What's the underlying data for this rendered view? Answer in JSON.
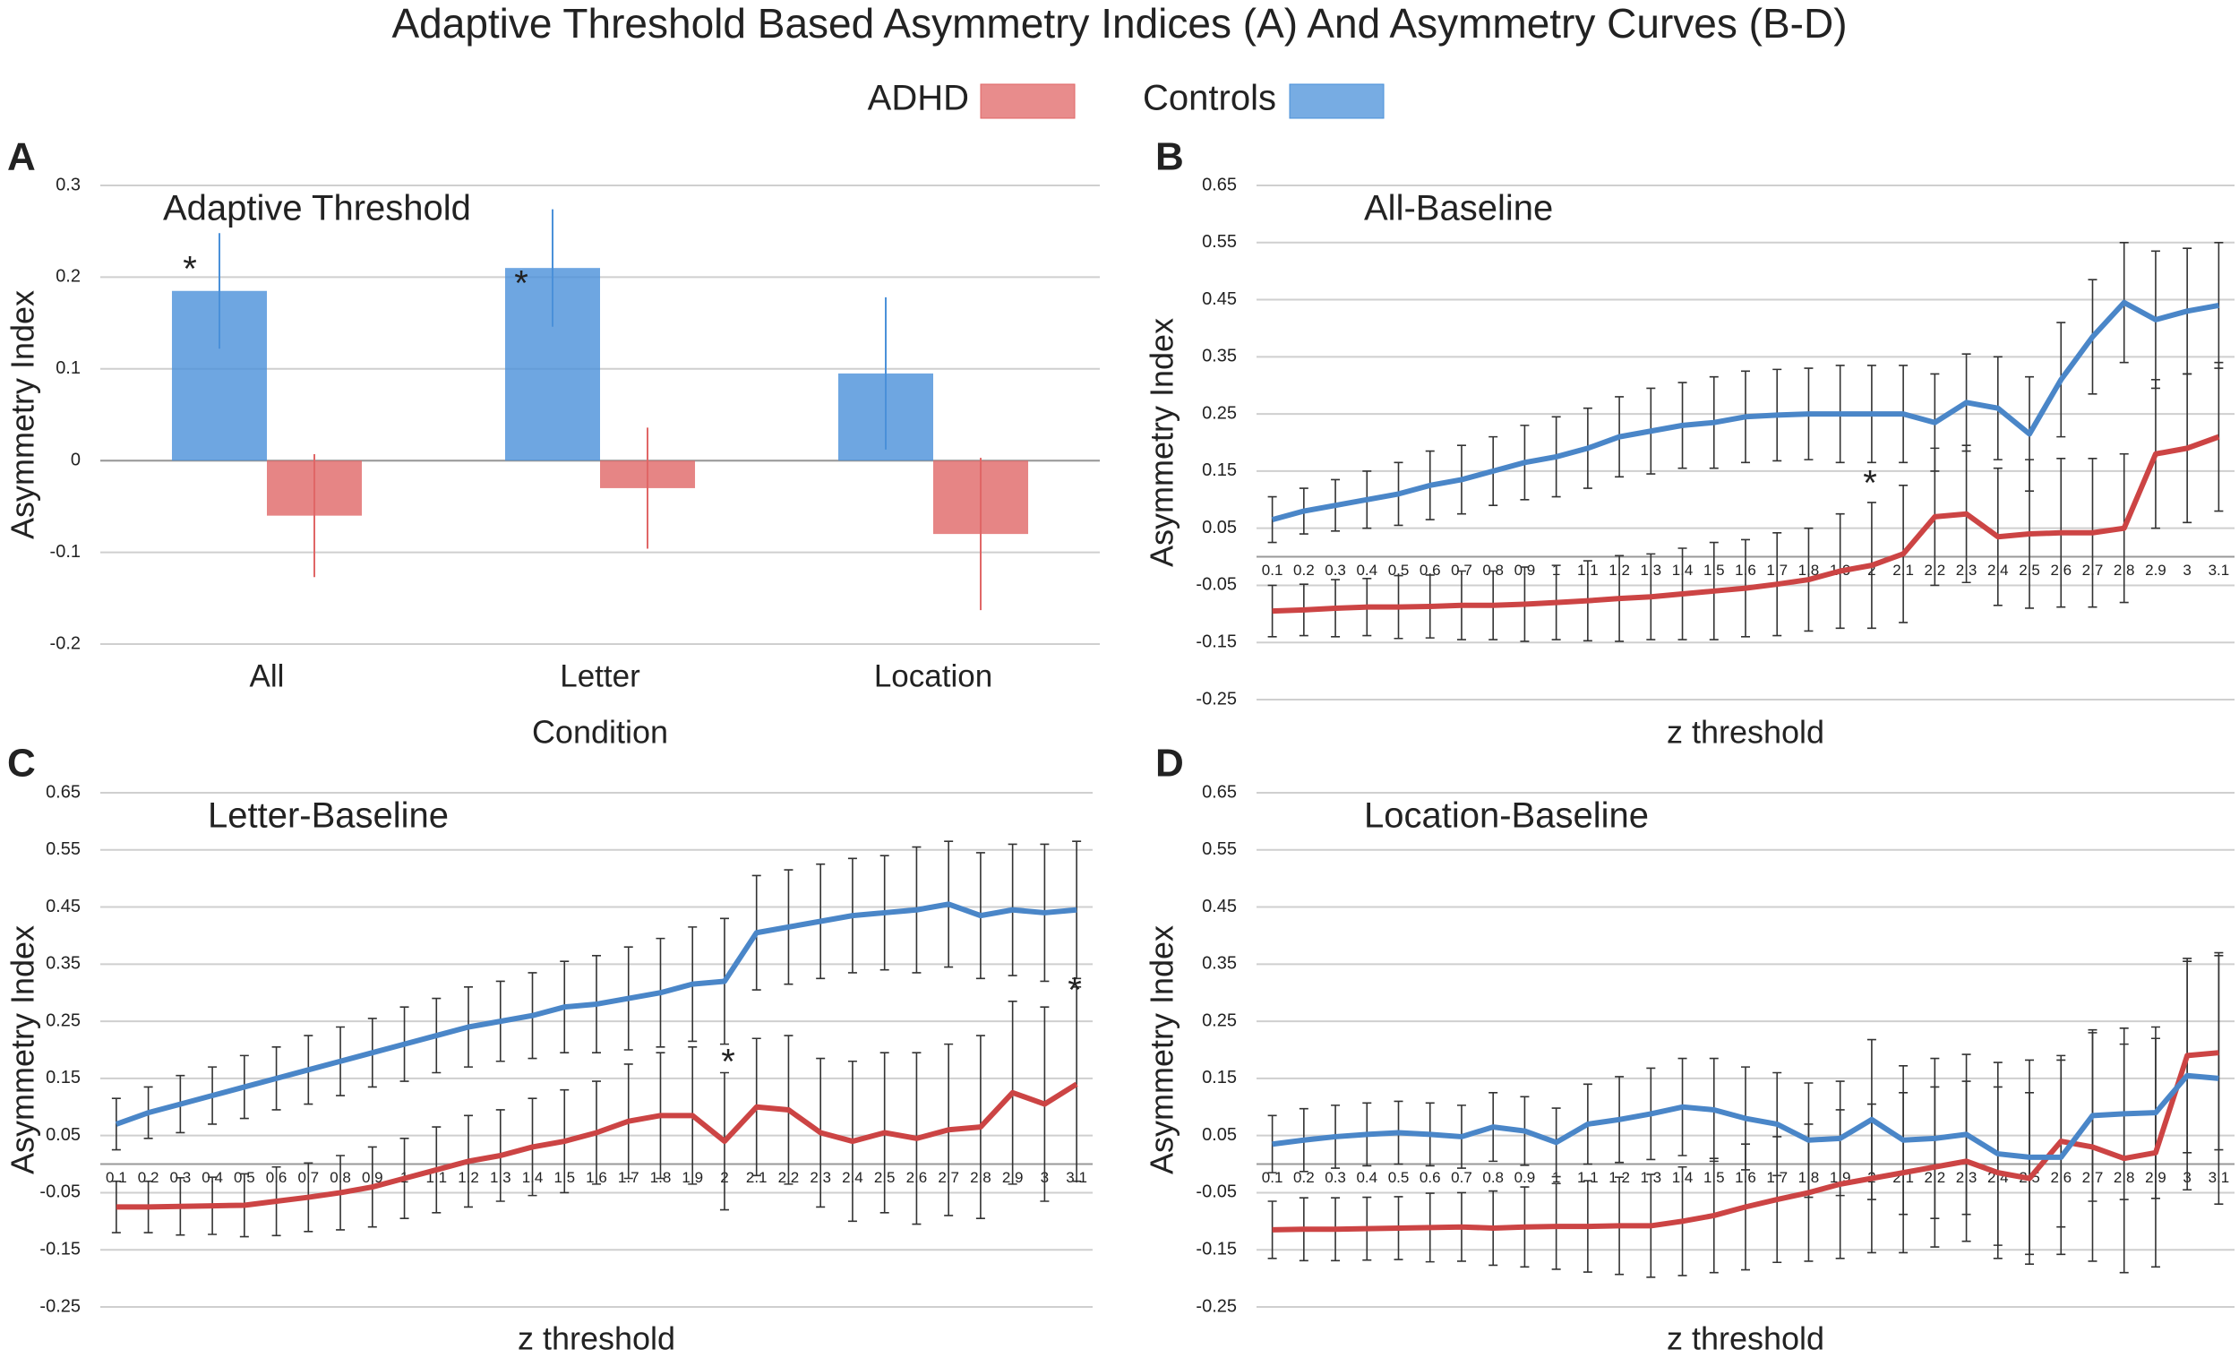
{
  "title": "Adaptive Threshold Based Asymmetry Indices (A) And Asymmetry Curves (B-D)",
  "chart_data": [
    {
      "type": "bar",
      "label": "A",
      "title": "Adaptive Threshold",
      "x_label": "Condition",
      "y_label": "Asymmetry Index",
      "categories": [
        "All",
        "Letter",
        "Location"
      ],
      "series": [
        {
          "name": "ADHD",
          "color": "#e06666",
          "values": [
            -0.06,
            -0.03,
            -0.08
          ],
          "errors": [
            0.067,
            0.066,
            0.083
          ]
        },
        {
          "name": "Controls",
          "color": "#4a90d9",
          "values": [
            0.185,
            0.21,
            0.095
          ],
          "errors": [
            0.063,
            0.064,
            0.083
          ]
        }
      ],
      "annotations": [
        "*",
        "*"
      ],
      "ylim": [
        -0.2,
        0.3
      ],
      "yticks": [
        -0.2,
        -0.1,
        0,
        0.1,
        0.2,
        0.3
      ],
      "grid": true
    },
    {
      "type": "line",
      "label": "B",
      "title": "All-Baseline",
      "x_label": "z threshold",
      "y_label": "Asymmetry Index",
      "categories": [
        "0.1",
        "0.2",
        "0.3",
        "0.4",
        "0.5",
        "0.6",
        "0.7",
        "0.8",
        "0.9",
        "1",
        "1.1",
        "1.2",
        "1.3",
        "1.4",
        "1.5",
        "1.6",
        "1.7",
        "1.8",
        "1.9",
        "2",
        "2.1",
        "2.2",
        "2.3",
        "2.4",
        "2.5",
        "2.6",
        "2.7",
        "2.8",
        "2.9",
        "3",
        "3.1"
      ],
      "series": [
        {
          "name": "ADHD",
          "color": "#cc4444",
          "values": [
            -0.095,
            -0.093,
            -0.09,
            -0.088,
            -0.088,
            -0.087,
            -0.085,
            -0.085,
            -0.083,
            -0.08,
            -0.077,
            -0.073,
            -0.07,
            -0.065,
            -0.06,
            -0.055,
            -0.048,
            -0.04,
            -0.025,
            -0.015,
            0.005,
            0.07,
            0.075,
            0.035,
            0.04,
            0.042,
            0.042,
            0.05,
            0.18,
            0.19,
            0.21
          ],
          "errors": [
            0.045,
            0.045,
            0.05,
            0.05,
            0.055,
            0.055,
            0.06,
            0.06,
            0.065,
            0.065,
            0.07,
            0.075,
            0.075,
            0.08,
            0.085,
            0.085,
            0.09,
            0.09,
            0.1,
            0.11,
            0.12,
            0.12,
            0.12,
            0.12,
            0.13,
            0.13,
            0.13,
            0.13,
            0.13,
            0.13,
            0.13
          ]
        },
        {
          "name": "Controls",
          "color": "#4a86c8",
          "values": [
            0.065,
            0.08,
            0.09,
            0.1,
            0.11,
            0.125,
            0.135,
            0.15,
            0.165,
            0.175,
            0.19,
            0.21,
            0.22,
            0.23,
            0.235,
            0.245,
            0.248,
            0.25,
            0.25,
            0.25,
            0.25,
            0.235,
            0.27,
            0.26,
            0.215,
            0.31,
            0.385,
            0.445,
            0.415,
            0.43,
            0.44
          ],
          "errors": [
            0.04,
            0.04,
            0.045,
            0.05,
            0.055,
            0.06,
            0.06,
            0.06,
            0.065,
            0.07,
            0.07,
            0.07,
            0.075,
            0.075,
            0.08,
            0.08,
            0.08,
            0.08,
            0.085,
            0.085,
            0.085,
            0.085,
            0.085,
            0.09,
            0.1,
            0.1,
            0.1,
            0.105,
            0.12,
            0.11,
            0.11
          ]
        }
      ],
      "annotations": [
        "*"
      ],
      "ylim": [
        -0.25,
        0.65
      ],
      "yticks": [
        -0.25,
        -0.15,
        -0.05,
        0.05,
        0.15,
        0.25,
        0.35,
        0.45,
        0.55,
        0.65
      ],
      "grid": true
    },
    {
      "type": "line",
      "label": "C",
      "title": "Letter-Baseline",
      "x_label": "z threshold",
      "y_label": "Asymmetry Index",
      "categories": [
        "0.1",
        "0.2",
        "0.3",
        "0.4",
        "0.5",
        "0.6",
        "0.7",
        "0.8",
        "0.9",
        "1",
        "1.1",
        "1.2",
        "1.3",
        "1.4",
        "1.5",
        "1.6",
        "1.7",
        "1.8",
        "1.9",
        "2",
        "2.1",
        "2.2",
        "2.3",
        "2.4",
        "2.5",
        "2.6",
        "2.7",
        "2.8",
        "2.9",
        "3",
        "3.1"
      ],
      "series": [
        {
          "name": "ADHD",
          "color": "#cc4444",
          "values": [
            -0.075,
            -0.075,
            -0.074,
            -0.073,
            -0.072,
            -0.065,
            -0.058,
            -0.05,
            -0.04,
            -0.025,
            -0.01,
            0.005,
            0.015,
            0.03,
            0.04,
            0.055,
            0.075,
            0.085,
            0.085,
            0.04,
            0.1,
            0.095,
            0.055,
            0.04,
            0.055,
            0.045,
            0.06,
            0.065,
            0.125,
            0.105,
            0.14
          ],
          "errors": [
            0.045,
            0.045,
            0.05,
            0.05,
            0.055,
            0.06,
            0.06,
            0.065,
            0.07,
            0.07,
            0.075,
            0.08,
            0.08,
            0.085,
            0.09,
            0.09,
            0.1,
            0.11,
            0.12,
            0.12,
            0.12,
            0.13,
            0.13,
            0.14,
            0.14,
            0.15,
            0.15,
            0.16,
            0.16,
            0.17,
            0.17
          ]
        },
        {
          "name": "Controls",
          "color": "#4a86c8",
          "values": [
            0.07,
            0.09,
            0.105,
            0.12,
            0.135,
            0.15,
            0.165,
            0.18,
            0.195,
            0.21,
            0.225,
            0.24,
            0.25,
            0.26,
            0.275,
            0.28,
            0.29,
            0.3,
            0.315,
            0.32,
            0.405,
            0.415,
            0.425,
            0.435,
            0.44,
            0.445,
            0.455,
            0.435,
            0.445,
            0.44,
            0.445
          ],
          "errors": [
            0.045,
            0.045,
            0.05,
            0.05,
            0.055,
            0.055,
            0.06,
            0.06,
            0.06,
            0.065,
            0.065,
            0.07,
            0.07,
            0.075,
            0.08,
            0.085,
            0.09,
            0.095,
            0.1,
            0.11,
            0.1,
            0.1,
            0.1,
            0.1,
            0.1,
            0.11,
            0.11,
            0.11,
            0.115,
            0.12,
            0.12
          ]
        }
      ],
      "annotations": [
        "*",
        "*"
      ],
      "ylim": [
        -0.25,
        0.65
      ],
      "yticks": [
        -0.25,
        -0.15,
        -0.05,
        0.05,
        0.15,
        0.25,
        0.35,
        0.45,
        0.55,
        0.65
      ],
      "grid": true
    },
    {
      "type": "line",
      "label": "D",
      "title": "Location-Baseline",
      "x_label": "z threshold",
      "y_label": "Asymmetry Index",
      "categories": [
        "0.1",
        "0.2",
        "0.3",
        "0.4",
        "0.5",
        "0.6",
        "0.7",
        "0.8",
        "0.9",
        "1",
        "1.1",
        "1.2",
        "1.3",
        "1.4",
        "1.5",
        "1.6",
        "1.7",
        "1.8",
        "1.9",
        "2",
        "2.1",
        "2.2",
        "2.3",
        "2.4",
        "2.5",
        "2.6",
        "2.7",
        "2.8",
        "2.9",
        "3",
        "3.1"
      ],
      "series": [
        {
          "name": "ADHD",
          "color": "#cc4444",
          "values": [
            -0.115,
            -0.114,
            -0.114,
            -0.113,
            -0.112,
            -0.111,
            -0.11,
            -0.112,
            -0.11,
            -0.109,
            -0.109,
            -0.108,
            -0.108,
            -0.1,
            -0.09,
            -0.075,
            -0.062,
            -0.05,
            -0.035,
            -0.025,
            -0.015,
            -0.005,
            0.005,
            -0.015,
            -0.025,
            0.04,
            0.03,
            0.01,
            0.02,
            0.19,
            0.195
          ],
          "errors": [
            0.05,
            0.055,
            0.055,
            0.055,
            0.055,
            0.06,
            0.06,
            0.065,
            0.07,
            0.075,
            0.08,
            0.085,
            0.09,
            0.095,
            0.1,
            0.11,
            0.11,
            0.12,
            0.13,
            0.13,
            0.14,
            0.14,
            0.14,
            0.15,
            0.15,
            0.15,
            0.2,
            0.2,
            0.2,
            0.17,
            0.17
          ]
        },
        {
          "name": "Controls",
          "color": "#4a86c8",
          "values": [
            0.035,
            0.042,
            0.048,
            0.052,
            0.055,
            0.052,
            0.048,
            0.065,
            0.058,
            0.038,
            0.07,
            0.078,
            0.088,
            0.1,
            0.095,
            0.08,
            0.07,
            0.042,
            0.045,
            0.078,
            0.042,
            0.045,
            0.052,
            0.018,
            0.012,
            0.012,
            0.085,
            0.088,
            0.09,
            0.155,
            0.15
          ],
          "errors": [
            0.05,
            0.055,
            0.055,
            0.055,
            0.055,
            0.055,
            0.055,
            0.06,
            0.06,
            0.06,
            0.07,
            0.075,
            0.08,
            0.085,
            0.09,
            0.09,
            0.09,
            0.1,
            0.1,
            0.14,
            0.13,
            0.14,
            0.14,
            0.16,
            0.17,
            0.17,
            0.15,
            0.15,
            0.15,
            0.2,
            0.22
          ]
        }
      ],
      "ylim": [
        -0.25,
        0.65
      ],
      "yticks": [
        -0.25,
        -0.15,
        -0.05,
        0.05,
        0.15,
        0.25,
        0.35,
        0.45,
        0.55,
        0.65
      ],
      "grid": true
    }
  ]
}
